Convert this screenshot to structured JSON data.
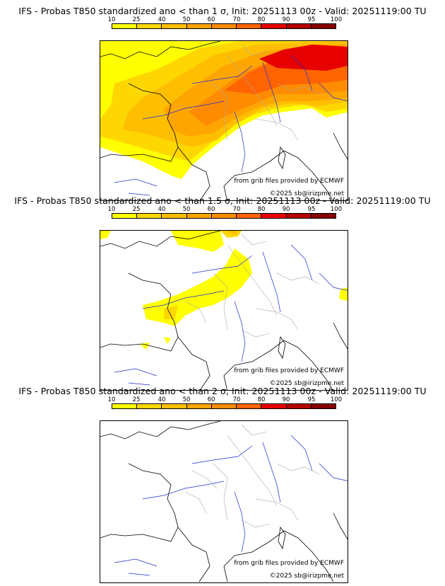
{
  "panels": [
    {
      "title": "IFS - Probas T850  standardized ano < than 1 σ, Init: 20251113 00z - Valid: 20251119:00 TU",
      "coverage": "extensive",
      "source_credit": "from grib files provided by ECMWF",
      "copyright": "©2025 sb@irizpme.net"
    },
    {
      "title": "IFS - Probas T850  standardized ano < than 1.5 σ, Init: 20251113 00z - Valid: 20251119:00 TU",
      "coverage": "moderate",
      "source_credit": "from grib files provided by ECMWF",
      "copyright": "©2025 sb@irizpme.net"
    },
    {
      "title": "IFS - Probas T850  standardized ano < than 2 σ, Init: 20251113 00z - Valid: 20251119:00 TU",
      "coverage": "none",
      "source_credit": "from grib files provided by ECMWF",
      "copyright": "©2025 sb@irizpme.net"
    }
  ],
  "colorbar": {
    "labels": [
      "10",
      "25",
      "40",
      "50",
      "60",
      "70",
      "80",
      "90",
      "95",
      "100"
    ],
    "colors": [
      "#ffff00",
      "#ffd700",
      "#ffbf00",
      "#ffa500",
      "#ff8c00",
      "#ff6400",
      "#e60000",
      "#b40000",
      "#870000",
      "#5a0000"
    ]
  },
  "palette": {
    "coast": "#000000",
    "rivers": "#1e2cd2",
    "borders": "#a8a8a8"
  }
}
